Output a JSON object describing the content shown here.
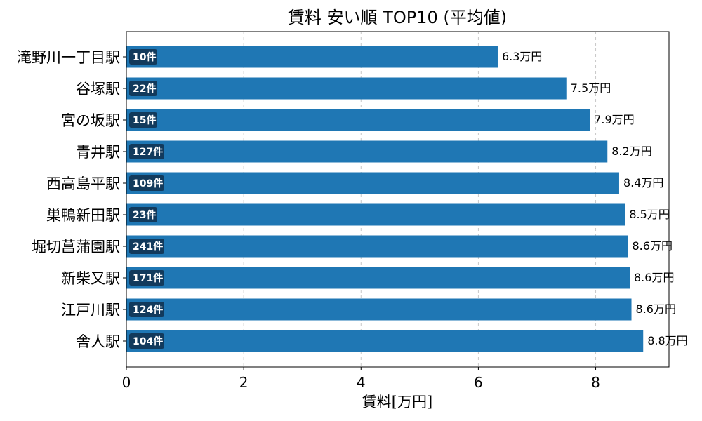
{
  "chart_data": {
    "type": "bar",
    "orientation": "horizontal",
    "title": "賃料 安い順 TOP10 (平均値)",
    "xlabel": "賃料[万円]",
    "ylabel": "",
    "xlim": [
      0,
      9.25
    ],
    "xticks": [
      0,
      2,
      4,
      6,
      8
    ],
    "grid": "x-dashed",
    "categories": [
      "滝野川一丁目駅",
      "谷塚駅",
      "宮の坂駅",
      "青井駅",
      "西高島平駅",
      "巣鴨新田駅",
      "堀切菖蒲園駅",
      "新柴又駅",
      "江戸川駅",
      "舎人駅"
    ],
    "values": [
      6.33,
      7.5,
      7.9,
      8.2,
      8.4,
      8.5,
      8.55,
      8.58,
      8.61,
      8.81
    ],
    "value_labels": [
      "6.3万円",
      "7.5万円",
      "7.9万円",
      "8.2万円",
      "8.4万円",
      "8.5万円",
      "8.6万円",
      "8.6万円",
      "8.6万円",
      "8.8万円"
    ],
    "counts": [
      "10件",
      "22件",
      "15件",
      "127件",
      "109件",
      "23件",
      "241件",
      "171件",
      "124件",
      "104件"
    ],
    "colors": {
      "bar": "#1f77b4",
      "badge": "#123a5c"
    }
  }
}
